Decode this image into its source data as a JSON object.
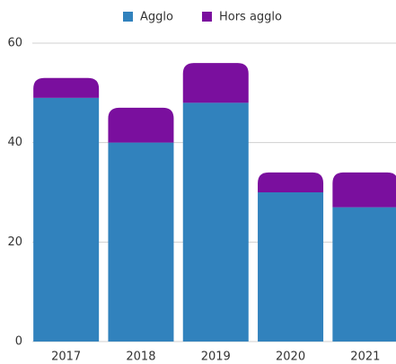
{
  "chart_data": {
    "type": "stacked_bar",
    "categories": [
      "2017",
      "2018",
      "2019",
      "2020",
      "2021"
    ],
    "series": [
      {
        "name": "Agglo",
        "color": "#3182bd",
        "values": [
          49,
          40,
          48,
          30,
          27
        ]
      },
      {
        "name": "Hors agglo",
        "color": "#7a0f9e",
        "values": [
          4,
          7,
          8,
          4,
          7
        ]
      }
    ],
    "ylim": [
      0,
      60
    ],
    "yticks": [
      0,
      20,
      40,
      60
    ],
    "grid": true,
    "legend": "top"
  }
}
